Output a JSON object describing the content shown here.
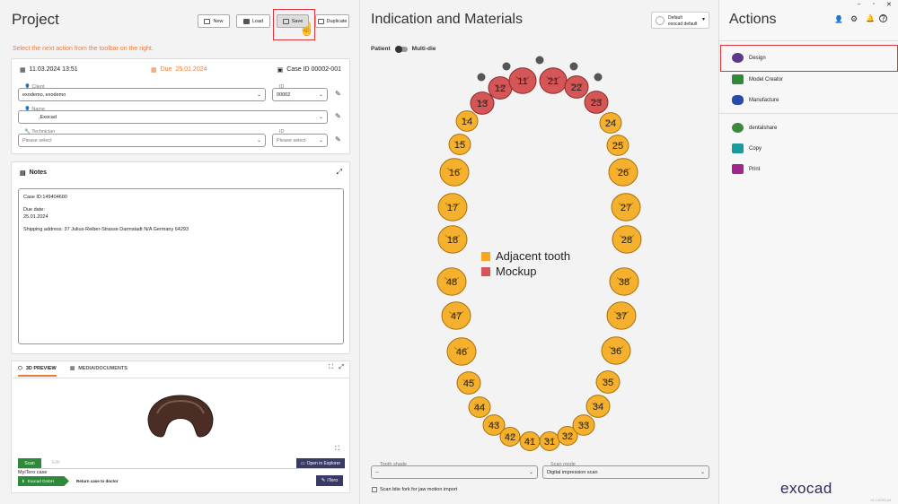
{
  "project": {
    "title": "Project",
    "toolbar": {
      "new": "New",
      "load": "Load",
      "save": "Save",
      "duplicate": "Duplicate"
    },
    "hint": "Select the next action from the toolbar on the right.",
    "case": {
      "created": "11.03.2024 13:51",
      "due_label": "Due",
      "due": "25.01.2024",
      "case_id": "Case ID 00002-001",
      "client_label": "Client",
      "client_value": "exodemo, exodemo",
      "id_label": "ID",
      "id_value": "00002",
      "name_label": "Name",
      "name_value": ",Exocad",
      "technician_label": "Technician",
      "technician_placeholder": "Please select",
      "tech_id_label": "ID",
      "tech_id_placeholder": "Please select"
    },
    "notes": {
      "title": "Notes",
      "line1": "Case ID:149404600",
      "line2": "Due date:",
      "line3": "25.01.2024",
      "line4": "Shipping address: 37 Julius-Reiber-Strasse Darmstadt N/A Germany 64293"
    },
    "preview": {
      "tab_3d": "3D PREVIEW",
      "tab_media": "MEDIA/DOCUMENTS",
      "scan_btn": "Scan",
      "edit_placeholder": "Edit",
      "open_explorer": "Open in Explorer",
      "myitero": "MyiTero case",
      "exocad_gmbh": "Exocad GmbH",
      "return_case": "Return case to doctor",
      "itero_btn": "iTero"
    }
  },
  "indication": {
    "title": "Indication and Materials",
    "profile_line1": "Default",
    "profile_line2": "exocad default",
    "toggle_left": "Patient",
    "toggle_right": "Multi-die",
    "legend": [
      {
        "label": "Adjacent tooth",
        "color": "#f5a623"
      },
      {
        "label": "Mockup",
        "color": "#d45656"
      }
    ],
    "upper_teeth": [
      "18",
      "17",
      "16",
      "15",
      "14",
      "13",
      "12",
      "11",
      "21",
      "22",
      "23",
      "24",
      "25",
      "26",
      "27",
      "28"
    ],
    "lower_teeth": [
      "48",
      "47",
      "46",
      "45",
      "44",
      "43",
      "42",
      "41",
      "31",
      "32",
      "33",
      "34",
      "35",
      "36",
      "37",
      "38"
    ],
    "mockup_teeth": [
      "13",
      "12",
      "11",
      "21",
      "22",
      "23"
    ],
    "tooth_shade_label": "Tooth shade",
    "tooth_shade_value": "--",
    "scan_mode_label": "Scan mode",
    "scan_mode_value": "Digital impression scan",
    "scan_bite_label": "Scan bite fork for jaw motion import"
  },
  "actions": {
    "title": "Actions",
    "items": [
      {
        "label": "Design",
        "color": "#5b3a8c"
      },
      {
        "label": "Model Creator",
        "color": "#2f8a3a"
      },
      {
        "label": "Manufacture",
        "color": "#2a4aa8"
      },
      {
        "label": "dentalshare",
        "color": "#3a8a3a"
      },
      {
        "label": "Copy",
        "color": "#1b9a9a"
      },
      {
        "label": "Print",
        "color": "#a0268c"
      }
    ],
    "brand": "exocad",
    "version": "v3.2.8765-64"
  },
  "colors": {
    "accent_orange": "#f07a3c",
    "highlight_red": "#e0343a",
    "tooth_orange": "#f5b02e",
    "tooth_red": "#d45656"
  }
}
